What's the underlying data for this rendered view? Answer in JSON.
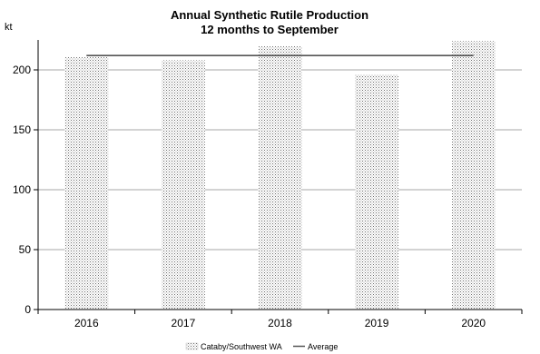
{
  "chart_data": {
    "type": "bar",
    "title": "Annual Synthetic Rutile Production",
    "subtitle": "12 months to September",
    "ylabel": "kt",
    "xlabel": "",
    "categories": [
      "2016",
      "2017",
      "2018",
      "2019",
      "2020"
    ],
    "series": [
      {
        "name": "Cataby/Southwest WA",
        "type": "bar",
        "values": [
          211,
          208,
          220,
          196,
          224
        ]
      }
    ],
    "reference_lines": [
      {
        "name": "Average",
        "value": 212,
        "color": "#555555"
      }
    ],
    "ylim": [
      0,
      225
    ],
    "yticks": [
      0,
      50,
      100,
      150,
      200
    ],
    "grid": true,
    "legend_position": "bottom"
  }
}
